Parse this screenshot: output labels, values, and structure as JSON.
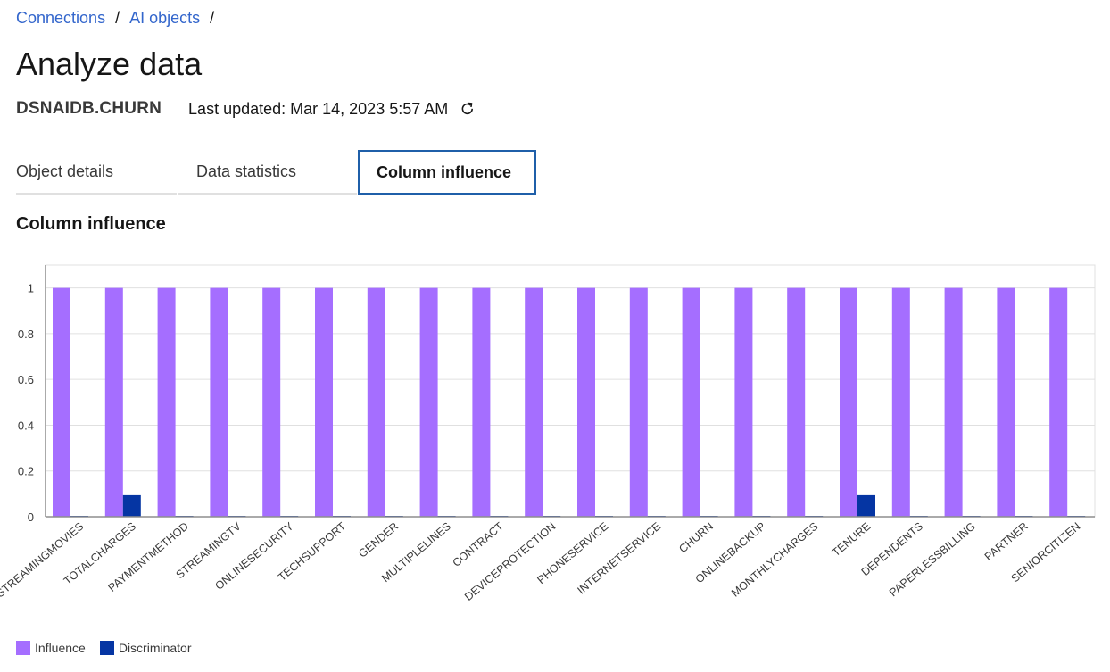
{
  "breadcrumb": {
    "items": [
      "Connections",
      "AI objects"
    ],
    "separator": "/"
  },
  "page": {
    "title": "Analyze data"
  },
  "meta": {
    "table_name": "DSNAIDB.CHURN",
    "last_updated": "Last updated: Mar 14, 2023 5:57 AM",
    "refresh_icon": "refresh-icon"
  },
  "tabs": [
    {
      "label": "Object details",
      "active": false
    },
    {
      "label": "Data statistics",
      "active": false
    },
    {
      "label": "Column influence",
      "active": true
    }
  ],
  "section": {
    "title": "Column influence"
  },
  "colors": {
    "influence": "#a56eff",
    "discriminator": "#0535a3",
    "link": "#3366cc",
    "tab_active_border": "#1f5fa9"
  },
  "chart_data": {
    "type": "bar",
    "categories": [
      "STREAMINGMOVIES",
      "TOTALCHARGES",
      "PAYMENTMETHOD",
      "STREAMINGTV",
      "ONLINESECURITY",
      "TECHSUPPORT",
      "GENDER",
      "MULTIPLELINES",
      "CONTRACT",
      "DEVICEPROTECTION",
      "PHONESERVICE",
      "INTERNETSERVICE",
      "CHURN",
      "ONLINEBACKUP",
      "MONTHLYCHARGES",
      "TENURE",
      "DEPENDENTS",
      "PAPERLESSBILLING",
      "PARTNER",
      "SENIORCITIZEN"
    ],
    "series": [
      {
        "name": "Influence",
        "values": [
          1,
          1,
          1,
          1,
          1,
          1,
          1,
          1,
          1,
          1,
          1,
          1,
          1,
          1,
          1,
          1,
          1,
          1,
          1,
          1
        ]
      },
      {
        "name": "Discriminator",
        "values": [
          0.001,
          0.094,
          0.002,
          0.001,
          0.001,
          0.001,
          0.0005,
          0.002,
          0.001,
          0.001,
          0.001,
          0.001,
          0.0005,
          0.001,
          0.003,
          0.094,
          0.001,
          0.001,
          0.0005,
          0.001
        ]
      }
    ],
    "yticks": [
      "0",
      "0.2",
      "0.4",
      "0.6",
      "0.8",
      "1"
    ],
    "ylim": [
      0,
      1.1
    ],
    "grid": true,
    "legend_position": "bottom-left"
  }
}
